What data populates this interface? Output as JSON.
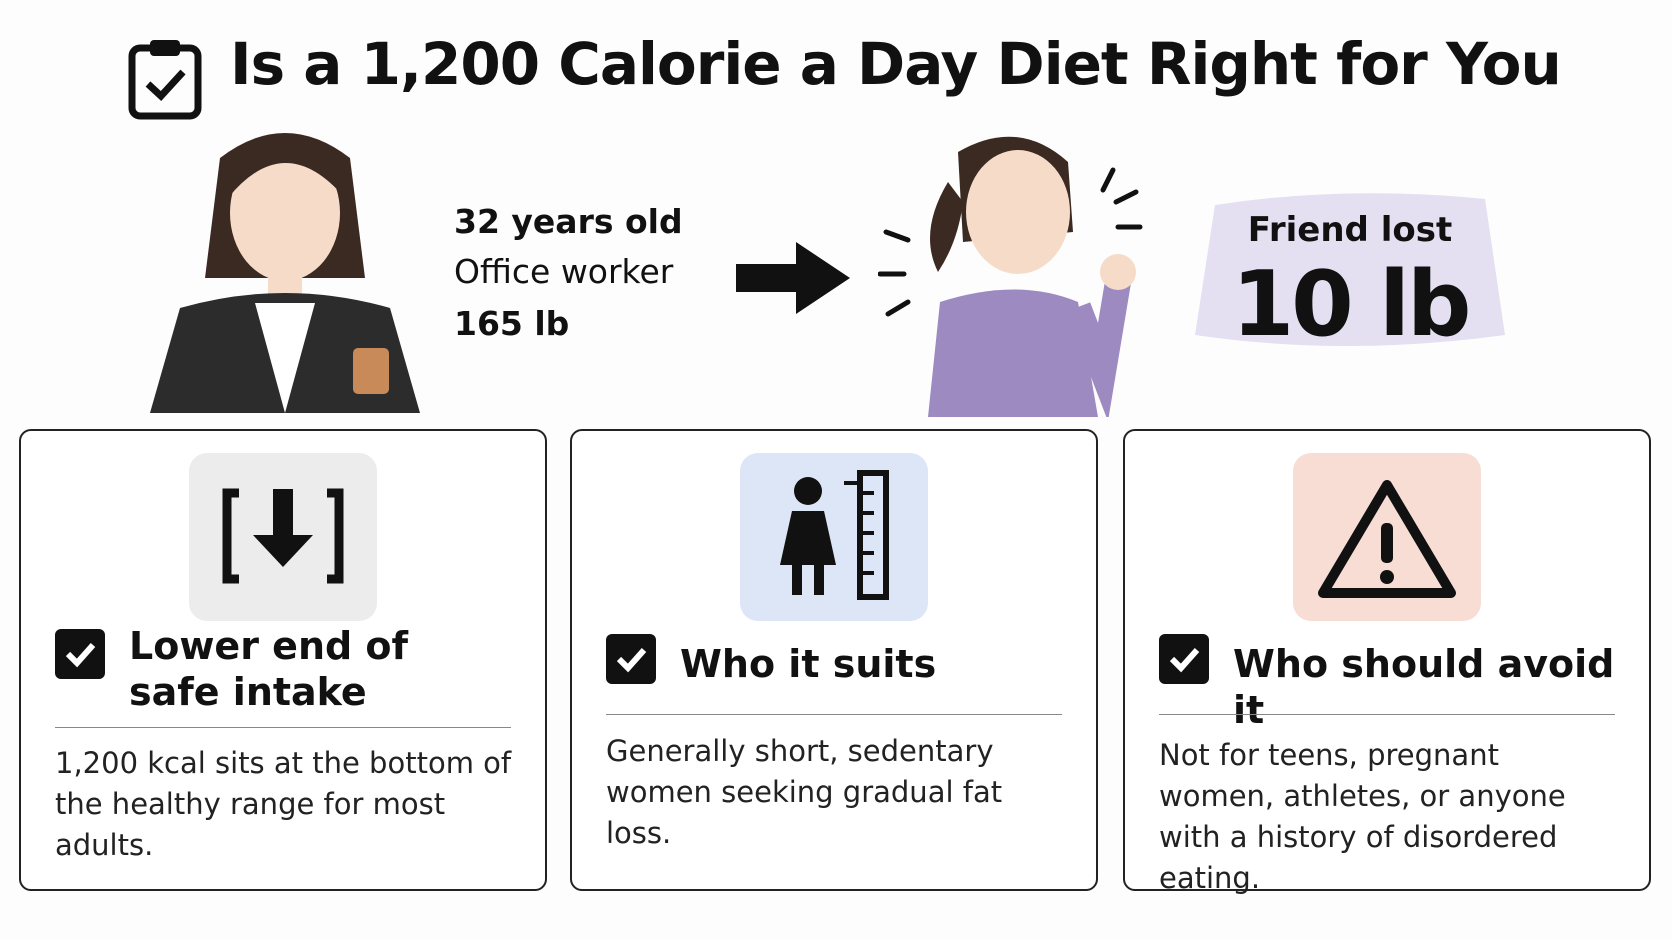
{
  "header": {
    "title": "Is a 1,200 Calorie a Day Diet Right for You"
  },
  "profile": {
    "lines": [
      "32 years old",
      "Office worker",
      "165 lb"
    ]
  },
  "friend": {
    "label": "Friend lost",
    "value": "10 lb"
  },
  "cards": [
    {
      "title": "Lower end of safe intake",
      "body": "1,200 kcal sits at the bottom of the healthy range for most adults."
    },
    {
      "title": "Who it suits",
      "body": "Generally short, sedentary women seeking gradual fat loss."
    },
    {
      "title": "Who should avoid it",
      "body": "Not for teens, pregnant women, athletes, or anyone with a history of disordered eating."
    }
  ]
}
